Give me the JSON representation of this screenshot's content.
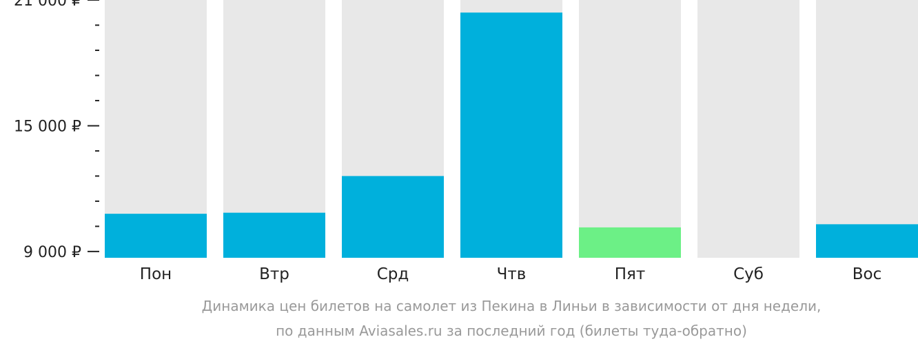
{
  "chart_data": {
    "type": "bar",
    "categories": [
      "Пон",
      "Втр",
      "Срд",
      "Чтв",
      "Пят",
      "Суб",
      "Вос"
    ],
    "values": [
      10800,
      10850,
      12600,
      20400,
      10150,
      null,
      10300
    ],
    "highlight_index": 4,
    "ylim": [
      8700,
      21000
    ],
    "major_ticks": [
      {
        "value": 9000,
        "label": "9 000 ₽"
      },
      {
        "value": 15000,
        "label": "15 000 ₽"
      },
      {
        "value": 21000,
        "label": "21 000 ₽"
      }
    ],
    "minor_tick_step": 1200,
    "caption_lines": [
      "Динамика цен билетов на самолет из Пекина в Линьи в зависимости от дня недели,",
      "по данным Aviasales.ru за последний год (билеты туда-обратно)"
    ],
    "colors": {
      "bar": "#00b0dc",
      "highlight": "#6cf086",
      "track": "#e8e8e8",
      "axis": "#222222",
      "caption": "#999999"
    }
  }
}
